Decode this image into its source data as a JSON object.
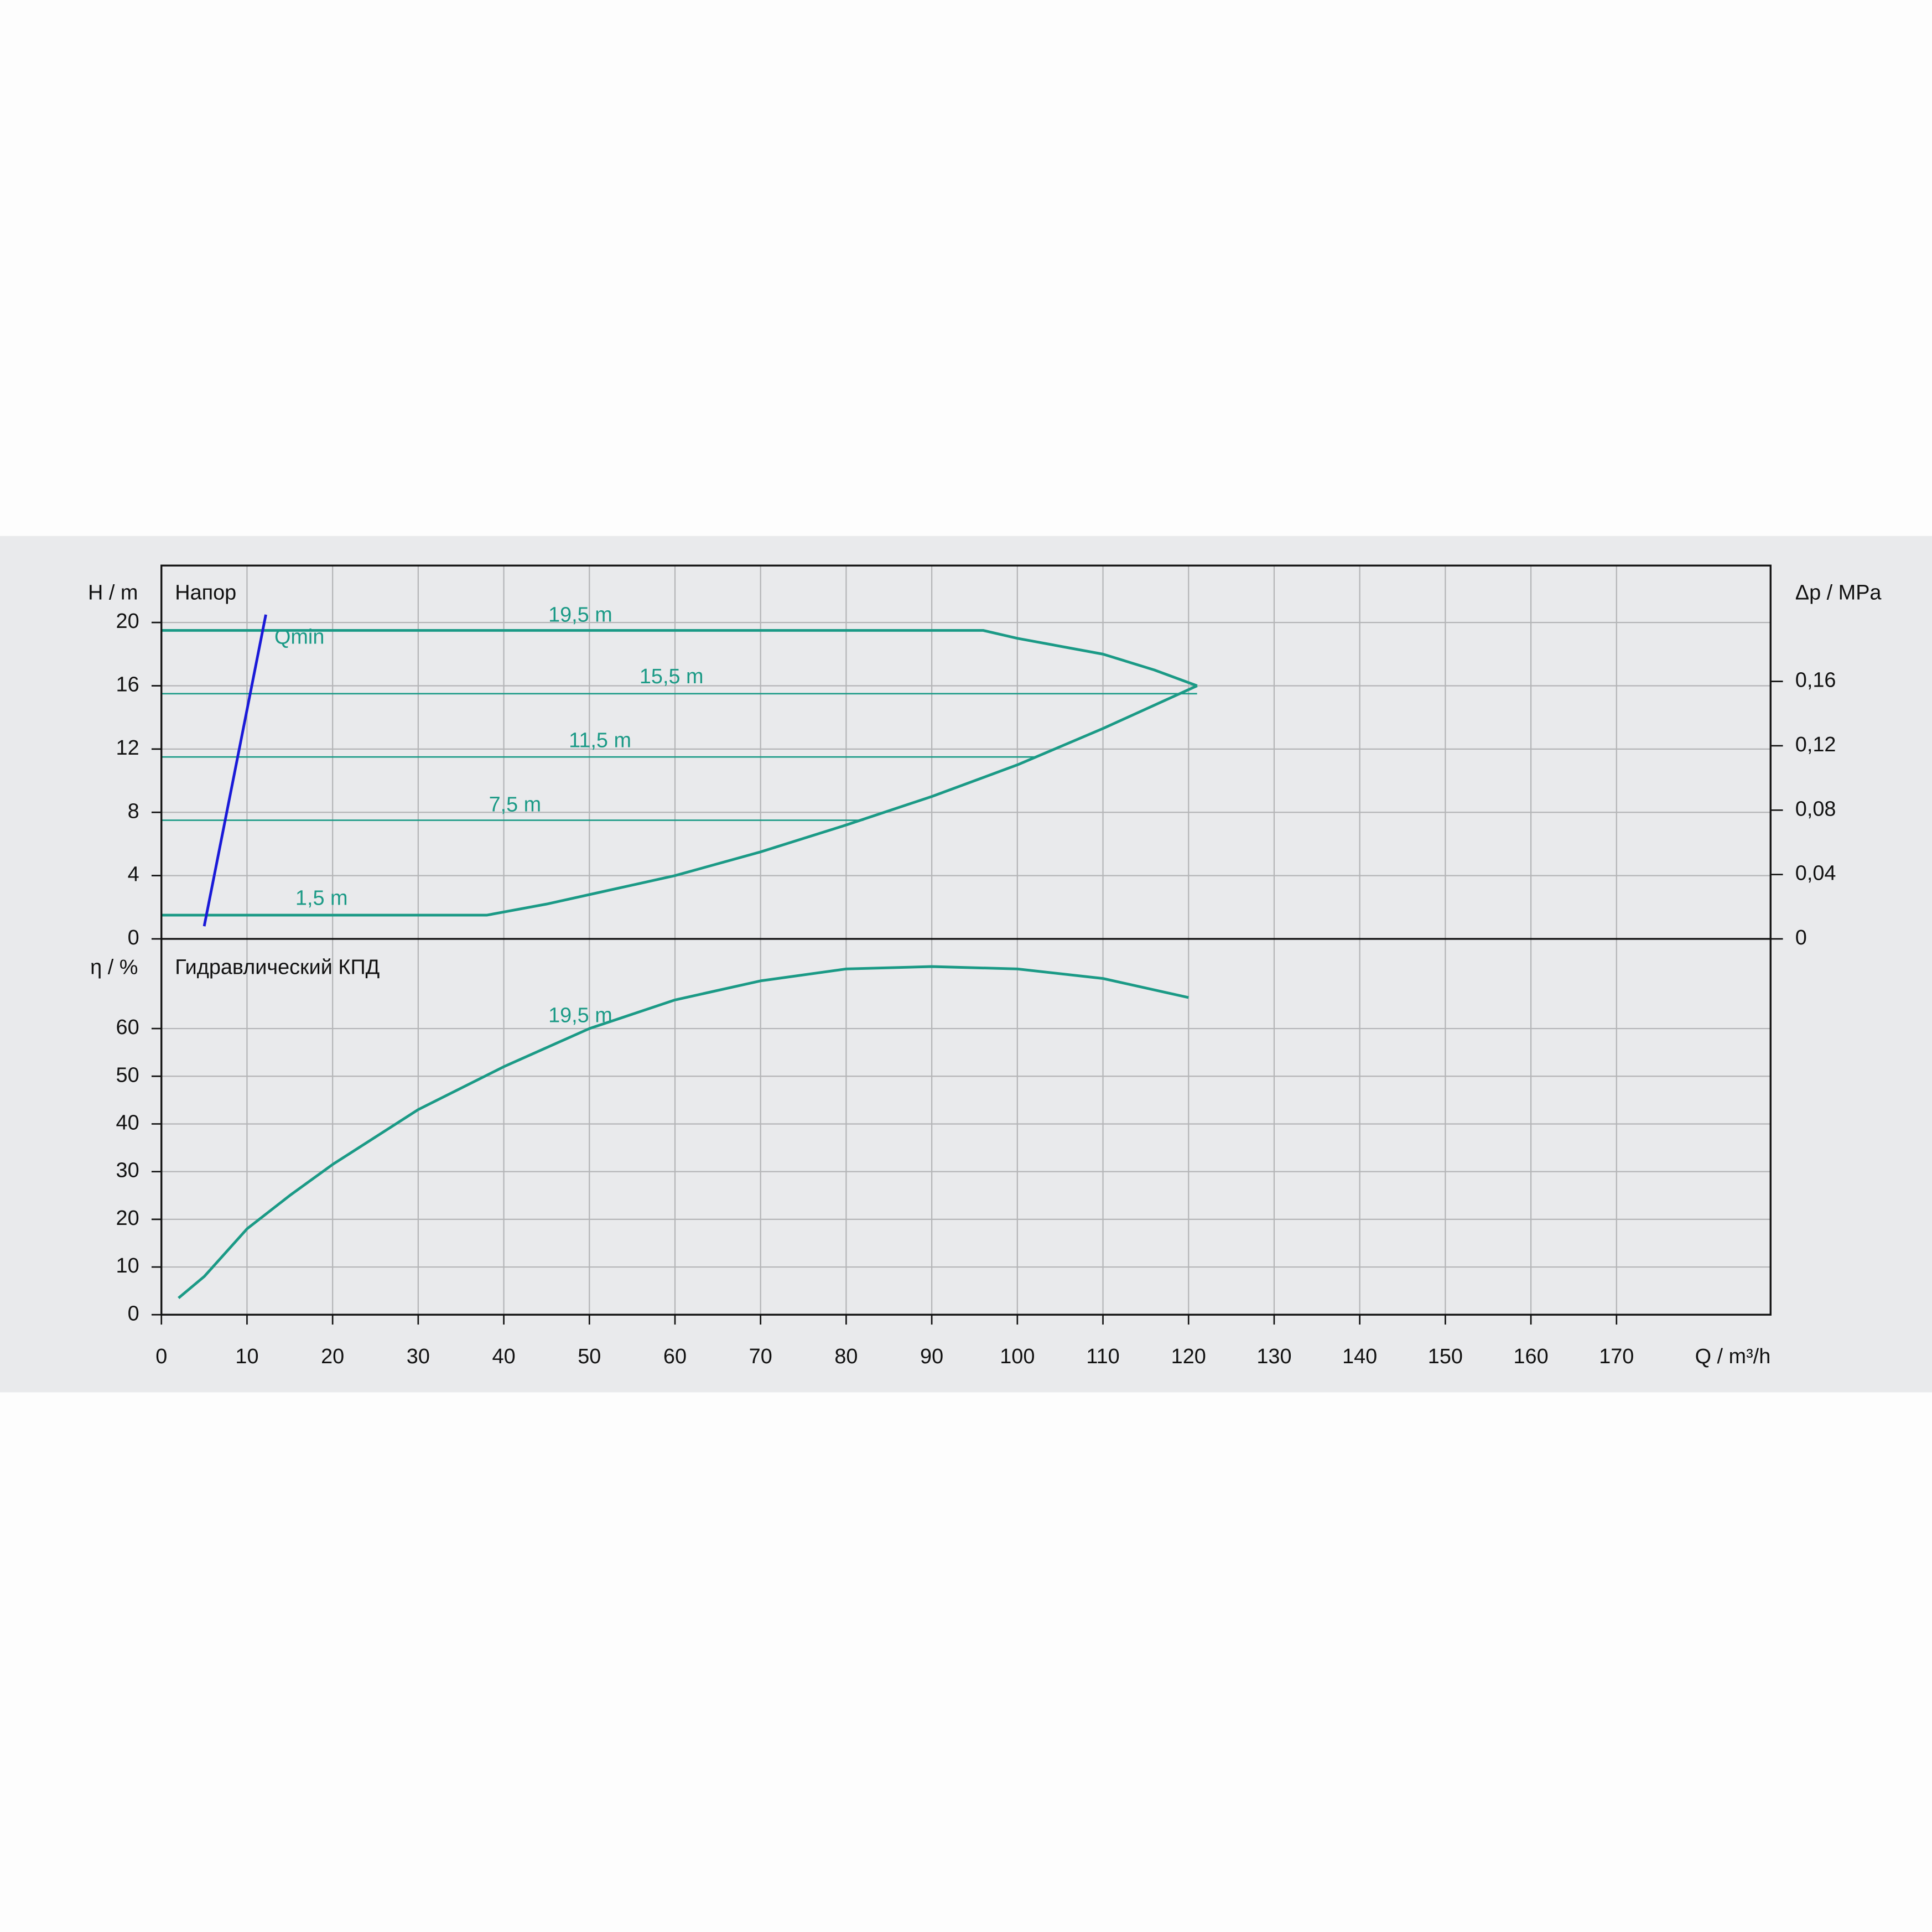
{
  "chart_data": [
    {
      "type": "line",
      "title": "Напор",
      "ylabel": "H / m",
      "y2label": "Δp / MPa",
      "xlim": [
        0,
        188
      ],
      "xticks": [
        0,
        10,
        20,
        30,
        40,
        50,
        60,
        70,
        80,
        90,
        100,
        110,
        120,
        130,
        140,
        150,
        160,
        170
      ],
      "ylim": [
        0,
        23.6
      ],
      "yticks": [
        0,
        4,
        8,
        12,
        16,
        20
      ],
      "y2lim": [
        0,
        0.232
      ],
      "y2ticks": [
        0,
        {
          "value": 0.04,
          "label": "0,04"
        },
        {
          "value": 0.08,
          "label": "0,08"
        },
        {
          "value": 0.12,
          "label": "0,12"
        },
        {
          "value": 0.16,
          "label": "0,16"
        }
      ],
      "grid": true,
      "series": [
        {
          "name": "19,5 m",
          "color": "#1b9a86",
          "line_width": 2.2,
          "x": [
            0,
            96,
            100,
            105,
            110,
            116,
            121
          ],
          "values": [
            19.5,
            19.5,
            19,
            18.5,
            18,
            17,
            16
          ]
        },
        {
          "name": "15,5 m",
          "color": "#1b9a86",
          "line_width": 1.2,
          "x": [
            0,
            121
          ],
          "values": [
            15.5,
            15.5
          ]
        },
        {
          "name": "11,5 m",
          "color": "#1b9a86",
          "line_width": 1.2,
          "x": [
            0,
            102
          ],
          "values": [
            11.5,
            11.5
          ]
        },
        {
          "name": "7,5 m",
          "color": "#1b9a86",
          "line_width": 1.2,
          "x": [
            0,
            82
          ],
          "values": [
            7.5,
            7.5
          ]
        },
        {
          "name": "1,5 m",
          "color": "#1b9a86",
          "line_width": 2.2,
          "x": [
            0,
            38,
            45,
            50,
            60,
            70,
            80,
            90,
            100,
            110,
            121
          ],
          "values": [
            1.5,
            1.5,
            2.2,
            2.8,
            4,
            5.5,
            7.2,
            9,
            11,
            13.3,
            16
          ]
        },
        {
          "name": "Qmin",
          "color": "#1a1ad8",
          "line_width": 2.2,
          "x": [
            5,
            12.2
          ],
          "values": [
            0.8,
            20.5
          ]
        }
      ]
    },
    {
      "type": "line",
      "title": "Гидравлический КПД",
      "ylabel": "η / %",
      "xlabel": "Q / m³/h",
      "xlim": [
        0,
        188
      ],
      "xticks": [
        0,
        10,
        20,
        30,
        40,
        50,
        60,
        70,
        80,
        90,
        100,
        110,
        120,
        130,
        140,
        150,
        160,
        170
      ],
      "ylim": [
        0,
        78.8
      ],
      "yticks": [
        0,
        10,
        20,
        30,
        40,
        50,
        60
      ],
      "grid": true,
      "series": [
        {
          "name": "19,5 m",
          "color": "#1b9a86",
          "line_width": 2.2,
          "x": [
            2,
            5,
            10,
            15,
            20,
            30,
            40,
            50,
            60,
            70,
            80,
            90,
            100,
            110,
            120
          ],
          "values": [
            3.5,
            8,
            18,
            25,
            31.5,
            43,
            52,
            60,
            66,
            70,
            72.5,
            73,
            72.5,
            70.5,
            66.5
          ]
        }
      ]
    }
  ]
}
